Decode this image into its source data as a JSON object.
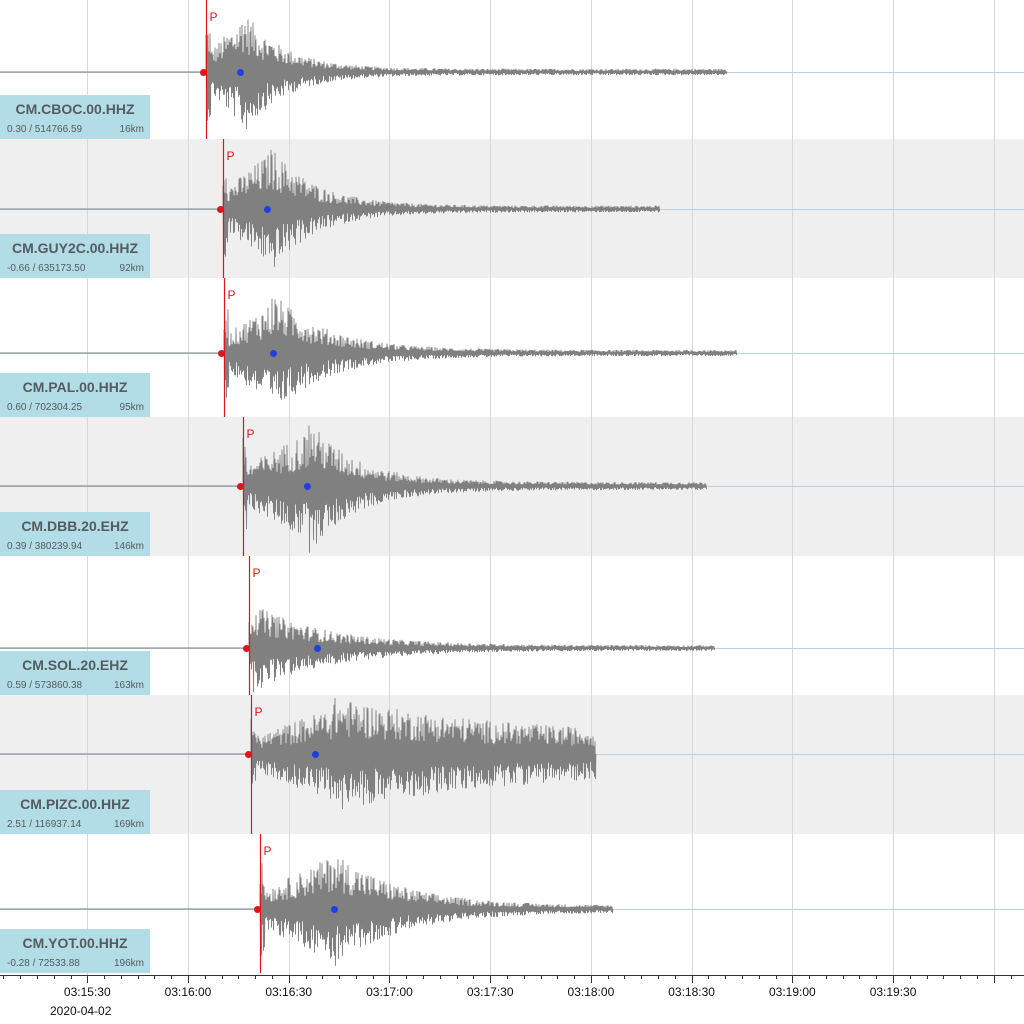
{
  "time_axis": {
    "ticks": [
      "03:15:30",
      "03:16:00",
      "03:16:30",
      "03:17:00",
      "03:17:30",
      "03:18:00",
      "03:18:30",
      "03:19:00",
      "03:19:30"
    ],
    "date": "2020-04-02",
    "start_sec": 11704,
    "end_sec": 12009,
    "first_tick_sec": 11730,
    "tick_step_sec": 30,
    "minor_step_sec": 5
  },
  "picks": {
    "p_label": "P",
    "p_color": "#e0141e",
    "s_color": "#1f3fe0"
  },
  "colors": {
    "trace": "#808080",
    "baseline": "#b9d4e3",
    "band_alt": "#efefef",
    "label_bg": "#b2dce6",
    "gridline": "#d8d8d8"
  },
  "stations": [
    {
      "name": "CM.CBOC.00.HHZ",
      "amp": "0.30 / 514766.59",
      "dist": "16km",
      "p_time": 11765.5,
      "s_time": 11775.5,
      "end_time": 11920.5,
      "peak_time": 11776,
      "decay": 12,
      "coda_level": 0.05
    },
    {
      "name": "CM.GUY2C.00.HHZ",
      "amp": "-0.66 / 635173.50",
      "dist": "92km",
      "p_time": 11770.5,
      "s_time": 11783.5,
      "end_time": 11900.5,
      "peak_time": 11784,
      "decay": 13,
      "coda_level": 0.05
    },
    {
      "name": "CM.PAL.00.HHZ",
      "amp": "0.60 / 702304.25",
      "dist": "95km",
      "p_time": 11770.8,
      "s_time": 11785.3,
      "end_time": 11923.5,
      "peak_time": 11785,
      "decay": 16,
      "coda_level": 0.05
    },
    {
      "name": "CM.DBB.20.EHZ",
      "amp": "0.39 / 380239.94",
      "dist": "146km",
      "p_time": 11776.3,
      "s_time": 11795.3,
      "end_time": 11914.3,
      "peak_time": 11796,
      "decay": 14,
      "coda_level": 0.06
    },
    {
      "name": "CM.SOL.20.EHZ",
      "amp": "0.59 / 573860.38",
      "dist": "163km",
      "p_time": 11778.3,
      "s_time": 11798.3,
      "end_time": 11916.8,
      "peak_time": 11779,
      "decay": 22,
      "coda_level": 0.06
    },
    {
      "name": "CM.PIZC.00.HHZ",
      "amp": "2.51 / 116937.14",
      "dist": "169km",
      "p_time": 11778.8,
      "s_time": 11797.8,
      "end_time": 11881.5,
      "peak_time": 11803,
      "decay": 60,
      "coda_level": 0.25
    },
    {
      "name": "CM.YOT.00.HHZ",
      "amp": "-0.28 / 72533.88",
      "dist": "196km",
      "p_time": 11781.5,
      "s_time": 11803.5,
      "end_time": 11886.5,
      "peak_time": 11802,
      "decay": 20,
      "coda_level": 0.05
    }
  ]
}
